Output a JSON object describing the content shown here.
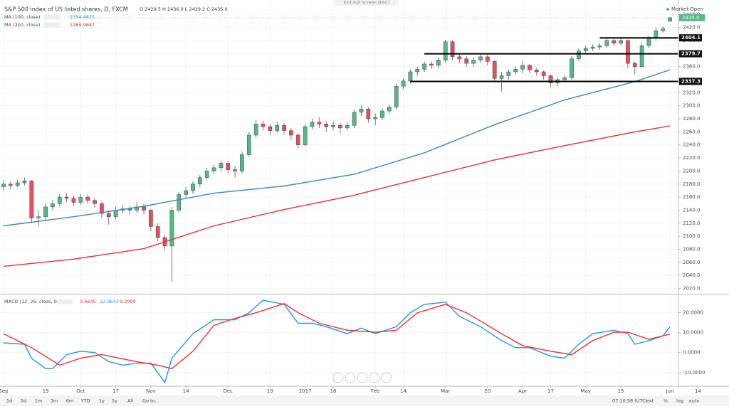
{
  "chart_data": {
    "type": "candlestick",
    "title": "S&P 500 index of US listed shares, D, FXCM",
    "ohlc_legend": "O 2429.5 H 2436.0 L 2429.2 C 2435.0",
    "up_color": "#53b987",
    "down_color": "#eb4d5c",
    "candles": [
      [
        2176,
        2186,
        2170,
        2180
      ],
      [
        2180,
        2184,
        2172,
        2178
      ],
      [
        2178,
        2187,
        2175,
        2182
      ],
      [
        2182,
        2190,
        2178,
        2185
      ],
      [
        2185,
        2186,
        2120,
        2128
      ],
      [
        2128,
        2140,
        2115,
        2130
      ],
      [
        2130,
        2150,
        2125,
        2145
      ],
      [
        2145,
        2156,
        2140,
        2150
      ],
      [
        2150,
        2165,
        2146,
        2160
      ],
      [
        2160,
        2166,
        2152,
        2158
      ],
      [
        2158,
        2162,
        2146,
        2152
      ],
      [
        2152,
        2165,
        2148,
        2160
      ],
      [
        2160,
        2164,
        2150,
        2155
      ],
      [
        2155,
        2158,
        2144,
        2150
      ],
      [
        2150,
        2153,
        2128,
        2135
      ],
      [
        2135,
        2140,
        2118,
        2130
      ],
      [
        2130,
        2145,
        2126,
        2140
      ],
      [
        2140,
        2148,
        2135,
        2142
      ],
      [
        2142,
        2147,
        2134,
        2140
      ],
      [
        2140,
        2152,
        2136,
        2145
      ],
      [
        2145,
        2150,
        2134,
        2140
      ],
      [
        2140,
        2142,
        2108,
        2115
      ],
      [
        2115,
        2120,
        2092,
        2098
      ],
      [
        2098,
        2102,
        2080,
        2085
      ],
      [
        2085,
        2145,
        2030,
        2140
      ],
      [
        2140,
        2168,
        2136,
        2164
      ],
      [
        2164,
        2176,
        2158,
        2170
      ],
      [
        2170,
        2184,
        2165,
        2180
      ],
      [
        2180,
        2194,
        2175,
        2190
      ],
      [
        2190,
        2205,
        2186,
        2200
      ],
      [
        2200,
        2210,
        2195,
        2205
      ],
      [
        2205,
        2216,
        2200,
        2212
      ],
      [
        2212,
        2215,
        2196,
        2202
      ],
      [
        2202,
        2208,
        2190,
        2200
      ],
      [
        2200,
        2230,
        2196,
        2225
      ],
      [
        2225,
        2260,
        2222,
        2255
      ],
      [
        2255,
        2278,
        2250,
        2272
      ],
      [
        2272,
        2277,
        2262,
        2268
      ],
      [
        2268,
        2272,
        2255,
        2262
      ],
      [
        2262,
        2276,
        2258,
        2270
      ],
      [
        2270,
        2274,
        2256,
        2262
      ],
      [
        2262,
        2266,
        2248,
        2255
      ],
      [
        2255,
        2258,
        2234,
        2240
      ],
      [
        2240,
        2272,
        2238,
        2268
      ],
      [
        2268,
        2280,
        2264,
        2275
      ],
      [
        2275,
        2282,
        2266,
        2272
      ],
      [
        2272,
        2276,
        2260,
        2268
      ],
      [
        2268,
        2276,
        2262,
        2270
      ],
      [
        2270,
        2274,
        2258,
        2266
      ],
      [
        2266,
        2276,
        2262,
        2270
      ],
      [
        2270,
        2294,
        2266,
        2290
      ],
      [
        2290,
        2300,
        2284,
        2295
      ],
      [
        2295,
        2298,
        2274,
        2280
      ],
      [
        2280,
        2288,
        2270,
        2282
      ],
      [
        2282,
        2296,
        2278,
        2292
      ],
      [
        2292,
        2302,
        2288,
        2298
      ],
      [
        2298,
        2334,
        2294,
        2330
      ],
      [
        2330,
        2342,
        2326,
        2338
      ],
      [
        2338,
        2356,
        2334,
        2352
      ],
      [
        2352,
        2360,
        2346,
        2356
      ],
      [
        2356,
        2368,
        2352,
        2364
      ],
      [
        2364,
        2368,
        2356,
        2362
      ],
      [
        2362,
        2374,
        2358,
        2370
      ],
      [
        2370,
        2401,
        2366,
        2398
      ],
      [
        2398,
        2400,
        2370,
        2375
      ],
      [
        2375,
        2380,
        2366,
        2372
      ],
      [
        2372,
        2376,
        2360,
        2365
      ],
      [
        2365,
        2374,
        2360,
        2370
      ],
      [
        2370,
        2380,
        2366,
        2375
      ],
      [
        2375,
        2378,
        2362,
        2368
      ],
      [
        2368,
        2370,
        2336,
        2342
      ],
      [
        2342,
        2352,
        2322,
        2346
      ],
      [
        2346,
        2356,
        2340,
        2352
      ],
      [
        2352,
        2360,
        2348,
        2356
      ],
      [
        2356,
        2368,
        2350,
        2362
      ],
      [
        2362,
        2364,
        2350,
        2355
      ],
      [
        2355,
        2358,
        2346,
        2352
      ],
      [
        2352,
        2354,
        2340,
        2346
      ],
      [
        2346,
        2348,
        2328,
        2335
      ],
      [
        2335,
        2344,
        2330,
        2340
      ],
      [
        2340,
        2346,
        2336,
        2343
      ],
      [
        2343,
        2376,
        2340,
        2372
      ],
      [
        2372,
        2388,
        2368,
        2384
      ],
      [
        2384,
        2392,
        2380,
        2388
      ],
      [
        2388,
        2394,
        2384,
        2390
      ],
      [
        2390,
        2396,
        2386,
        2392
      ],
      [
        2392,
        2404,
        2388,
        2400
      ],
      [
        2400,
        2403,
        2392,
        2396
      ],
      [
        2396,
        2404,
        2392,
        2400
      ],
      [
        2400,
        2402,
        2358,
        2365
      ],
      [
        2365,
        2368,
        2348,
        2360
      ],
      [
        2360,
        2396,
        2358,
        2392
      ],
      [
        2392,
        2408,
        2388,
        2404
      ],
      [
        2404,
        2420,
        2400,
        2415
      ],
      [
        2415,
        2422,
        2412,
        2418
      ],
      [
        2429.5,
        2436,
        2429.2,
        2435
      ]
    ],
    "xlim": [
      -0.5,
      102
    ],
    "xticks": [
      {
        "value": 0,
        "label": "Sep"
      },
      {
        "value": 6,
        "label": "19"
      },
      {
        "value": 11,
        "label": "Oct"
      },
      {
        "value": 16,
        "label": "17"
      },
      {
        "value": 21,
        "label": "Nov"
      },
      {
        "value": 26,
        "label": "14"
      },
      {
        "value": 32,
        "label": "Dec"
      },
      {
        "value": 38,
        "label": "19"
      },
      {
        "value": 43,
        "label": "2017"
      },
      {
        "value": 47,
        "label": "16"
      },
      {
        "value": 53,
        "label": "Feb"
      },
      {
        "value": 57,
        "label": "14"
      },
      {
        "value": 63,
        "label": "Mar"
      },
      {
        "value": 69,
        "label": "20"
      },
      {
        "value": 74,
        "label": "Apr"
      },
      {
        "value": 78,
        "label": "17"
      },
      {
        "value": 83,
        "label": "May"
      },
      {
        "value": 88,
        "label": "15"
      },
      {
        "value": 95,
        "label": "Jun"
      },
      {
        "value": 99,
        "label": "14"
      }
    ],
    "ylim": [
      2013,
      2449
    ],
    "yticks": [
      {
        "value": 2020,
        "label": "2020.0"
      },
      {
        "value": 2040,
        "label": "2040.0"
      },
      {
        "value": 2060,
        "label": "2060.0"
      },
      {
        "value": 2080,
        "label": "2080.0"
      },
      {
        "value": 2100,
        "label": "2100.0"
      },
      {
        "value": 2120,
        "label": "2120.0"
      },
      {
        "value": 2140,
        "label": "2140.0"
      },
      {
        "value": 2160,
        "label": "2160.0"
      },
      {
        "value": 2180,
        "label": "2180.0"
      },
      {
        "value": 2200,
        "label": "2200.0"
      },
      {
        "value": 2220,
        "label": "2220.0"
      },
      {
        "value": 2240,
        "label": "2240.0"
      },
      {
        "value": 2260,
        "label": "2260.0"
      },
      {
        "value": 2280,
        "label": "2280.0"
      },
      {
        "value": 2300,
        "label": "2300.0"
      },
      {
        "value": 2320,
        "label": "2320.0"
      },
      {
        "value": 2340,
        "label": "2340.0"
      },
      {
        "value": 2360,
        "label": "2360.0"
      },
      {
        "value": 2380,
        "label": "2380.0"
      },
      {
        "value": 2400,
        "label": "2400.0"
      },
      {
        "value": 2420,
        "label": "2420.0"
      },
      {
        "value": 2440,
        "label": "2440.0"
      }
    ],
    "grid": true,
    "overlays": [
      {
        "name": "MA (100, close)",
        "value_label": "2354.4825",
        "color": "#3d85c6",
        "x": [
          0,
          10,
          20,
          30,
          40,
          50,
          60,
          70,
          80,
          90,
          95
        ],
        "values": [
          2116,
          2130,
          2146,
          2166,
          2177,
          2195,
          2228,
          2271,
          2309,
          2337,
          2355
        ]
      },
      {
        "name": "MA (200, close)",
        "value_label": "2269.9687",
        "color": "#e8302e",
        "x": [
          0,
          10,
          20,
          30,
          40,
          50,
          60,
          70,
          80,
          90,
          95
        ],
        "values": [
          2054,
          2065,
          2081,
          2116,
          2141,
          2163,
          2190,
          2217,
          2239,
          2260,
          2269
        ]
      }
    ],
    "levels": [
      {
        "value": 2404.1,
        "label": "2404.1",
        "from": 85
      },
      {
        "value": 2379.7,
        "label": "2379.7",
        "from": 60
      },
      {
        "value": 2337.3,
        "label": "2337.3",
        "from": 58
      }
    ],
    "last_price": {
      "value": 2435,
      "label": "2435.0",
      "color": "#53b987"
    },
    "macd": {
      "name": "MACD (12, 26, close, 9)",
      "value_labels": [
        "3.6645",
        "12.9643",
        "9.2999"
      ],
      "ylim": [
        -16.5,
        28.8
      ],
      "yticks": [
        {
          "value": 20,
          "label": "20.0000"
        },
        {
          "value": 10,
          "label": "10.0000"
        },
        {
          "value": 0,
          "label": "0.0000"
        },
        {
          "value": -10,
          "label": "-10.0000"
        }
      ],
      "series": [
        {
          "color": "#2196f3",
          "x": [
            0,
            3,
            4,
            6,
            7,
            9,
            11,
            13,
            15,
            17,
            19,
            21,
            23,
            24,
            27,
            30,
            33,
            35,
            37,
            40,
            42,
            44,
            46,
            49,
            51,
            53,
            56,
            58,
            60,
            63,
            65,
            68,
            71,
            73,
            75,
            78,
            80,
            82,
            84,
            87,
            89,
            90,
            92,
            94,
            95
          ],
          "values": [
            4.9,
            4.2,
            -2.8,
            -8,
            -8,
            -1,
            0.7,
            0,
            -4.5,
            -6.3,
            -5.3,
            -5.3,
            -15,
            -2.8,
            9.5,
            16.5,
            16.5,
            20,
            26.3,
            24.2,
            14.7,
            14.7,
            13,
            9.5,
            12.3,
            9.5,
            13,
            20,
            24.2,
            25.3,
            18.2,
            13,
            6,
            2.5,
            2.5,
            -1.8,
            -2.8,
            4.2,
            9.5,
            11.2,
            9.5,
            4.2,
            6,
            8.4,
            12.96
          ]
        },
        {
          "color": "#f03030",
          "x": [
            0,
            4,
            8,
            11,
            14,
            19,
            22,
            24,
            27,
            30,
            33,
            36,
            40,
            42,
            45,
            49,
            53,
            56,
            59,
            63,
            66,
            71,
            74,
            78,
            81,
            84,
            87,
            89,
            92,
            95
          ],
          "values": [
            9.5,
            2.5,
            -6.3,
            -2.8,
            -1,
            -4.6,
            -6.3,
            -8,
            0.7,
            13.7,
            17.2,
            20,
            24.6,
            20,
            14.7,
            11.2,
            10.2,
            11.2,
            20,
            24.2,
            20,
            9.5,
            3.5,
            0.7,
            -1,
            6,
            10.2,
            10.2,
            6.7,
            9.3
          ]
        }
      ]
    }
  },
  "ui": {
    "exit_fullscreen": "Exit Full Screen (ESC)",
    "market_status": "Market Open",
    "ranges": [
      "1d",
      "5d",
      "1m",
      "3m",
      "6m",
      "YTD",
      "1y",
      "5y",
      "All"
    ],
    "goto": "Go to...",
    "clock": "07:10:58 (UTC)",
    "scale_options": [
      "ext",
      "%",
      "log",
      "auto"
    ]
  }
}
